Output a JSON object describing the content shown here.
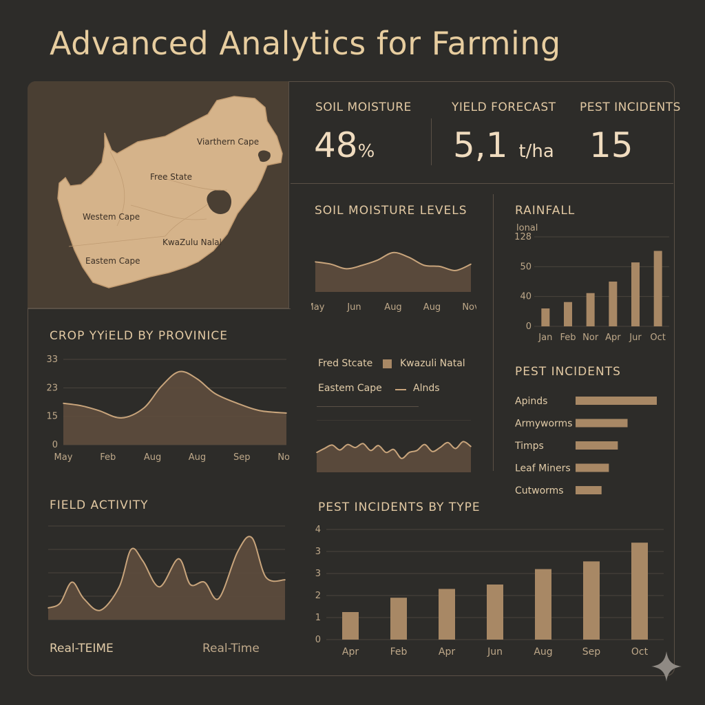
{
  "title": "Advanced Analytics for Farming",
  "colors": {
    "bg": "#2d2c29",
    "accent": "#c9a57c",
    "bar": "#a88865",
    "text": "#e9d3b1"
  },
  "map": {
    "labels": [
      "Viarthern Cape",
      "Free State",
      "Westem Cape",
      "KwaZulu Nalal",
      "Eastem Cape"
    ]
  },
  "kpis": {
    "soil_moisture": {
      "label": "SOIL MOISTURE",
      "value": "48",
      "unit": "%"
    },
    "yield_forecast": {
      "label": "YIELD FORECAST",
      "value": "5,1",
      "unit": "t/ha"
    },
    "pest_incidents": {
      "label": "PEST INCIDENTS",
      "value": "15"
    }
  },
  "chart_data": [
    {
      "type": "area",
      "title": "SOIL MOISTURE LEVELS",
      "categories": [
        "May",
        "Jun",
        "Aug",
        "Aug",
        "Nov"
      ],
      "x": [
        0,
        0.1,
        0.2,
        0.3,
        0.4,
        0.5,
        0.6,
        0.7,
        0.8,
        0.9,
        1.0
      ],
      "values": [
        52,
        48,
        40,
        46,
        55,
        68,
        60,
        46,
        44,
        37,
        48
      ],
      "ylim": [
        0,
        100
      ],
      "grid": false
    },
    {
      "type": "bar",
      "title": "RAINFALL",
      "y_unit_label": "lonal",
      "categories": [
        "Jan",
        "Feb",
        "Nor",
        "Apr",
        "Jur",
        "Oct"
      ],
      "values": [
        28,
        38,
        52,
        70,
        100,
        118
      ],
      "y_ticks": [
        "0",
        "40",
        "50",
        "128"
      ],
      "ylim": [
        0,
        140
      ],
      "grid": true
    },
    {
      "type": "area",
      "title": "CROP YYiELD BY PROVINICE",
      "categories": [
        "May",
        "Feb",
        "Aug",
        "Aug",
        "Sep",
        "Nov"
      ],
      "x": [
        0,
        0.08,
        0.16,
        0.26,
        0.36,
        0.44,
        0.52,
        0.6,
        0.68,
        0.78,
        0.88,
        1.0
      ],
      "values": [
        17,
        16,
        14,
        11,
        15,
        24,
        30,
        27,
        21,
        17,
        14,
        13
      ],
      "y_ticks": [
        "0",
        "15",
        "23",
        "33"
      ],
      "ylim": [
        0,
        35
      ],
      "grid": true
    },
    {
      "type": "line",
      "legend": [
        {
          "name": "Fred Stcate",
          "marker": "none"
        },
        {
          "name": "Kwazuli  Natal",
          "marker": "square"
        },
        {
          "name": "Eastem Cape",
          "marker": "none"
        },
        {
          "name": "Alnds",
          "marker": "line"
        }
      ],
      "x": [
        0,
        0.05,
        0.1,
        0.15,
        0.2,
        0.25,
        0.3,
        0.35,
        0.4,
        0.45,
        0.5,
        0.55,
        0.6,
        0.65,
        0.7,
        0.75,
        0.8,
        0.85,
        0.9,
        0.95,
        1.0
      ],
      "values": [
        40,
        48,
        55,
        45,
        56,
        50,
        58,
        44,
        54,
        40,
        46,
        28,
        40,
        44,
        56,
        42,
        50,
        60,
        48,
        62,
        52
      ],
      "ylim": [
        0,
        100
      ]
    },
    {
      "type": "bar",
      "orientation": "horizontal",
      "title": "PEST INCIDENTS",
      "categories": [
        "Apinds",
        "Armyworms",
        "Timps",
        "Leaf Miners",
        "Cutworms"
      ],
      "values": [
        100,
        64,
        52,
        41,
        32
      ],
      "xlim": [
        0,
        100
      ]
    },
    {
      "type": "area",
      "title": "FIELD ACTIVITY",
      "x": [
        0,
        0.05,
        0.1,
        0.15,
        0.22,
        0.3,
        0.35,
        0.4,
        0.47,
        0.55,
        0.6,
        0.66,
        0.72,
        0.8,
        0.86,
        0.92,
        1.0
      ],
      "values": [
        10,
        14,
        32,
        18,
        8,
        28,
        60,
        50,
        28,
        52,
        30,
        32,
        18,
        58,
        70,
        36,
        34
      ],
      "ylim": [
        0,
        80
      ],
      "grid": true,
      "footer_left": "Real-TEIME",
      "footer_right": "Real-Time"
    },
    {
      "type": "bar",
      "title": "PEST INCIDENTS BY TYPE",
      "categories": [
        "Apr",
        "Feb",
        "Apr",
        "Jun",
        "Aug",
        "Sep",
        "Oct"
      ],
      "values": [
        1.25,
        1.9,
        2.3,
        2.5,
        3.2,
        3.55,
        4.4
      ],
      "y_ticks": [
        "0",
        "1",
        "2",
        "3",
        "3",
        "4"
      ],
      "ylim": [
        0,
        5
      ],
      "grid": true
    }
  ]
}
